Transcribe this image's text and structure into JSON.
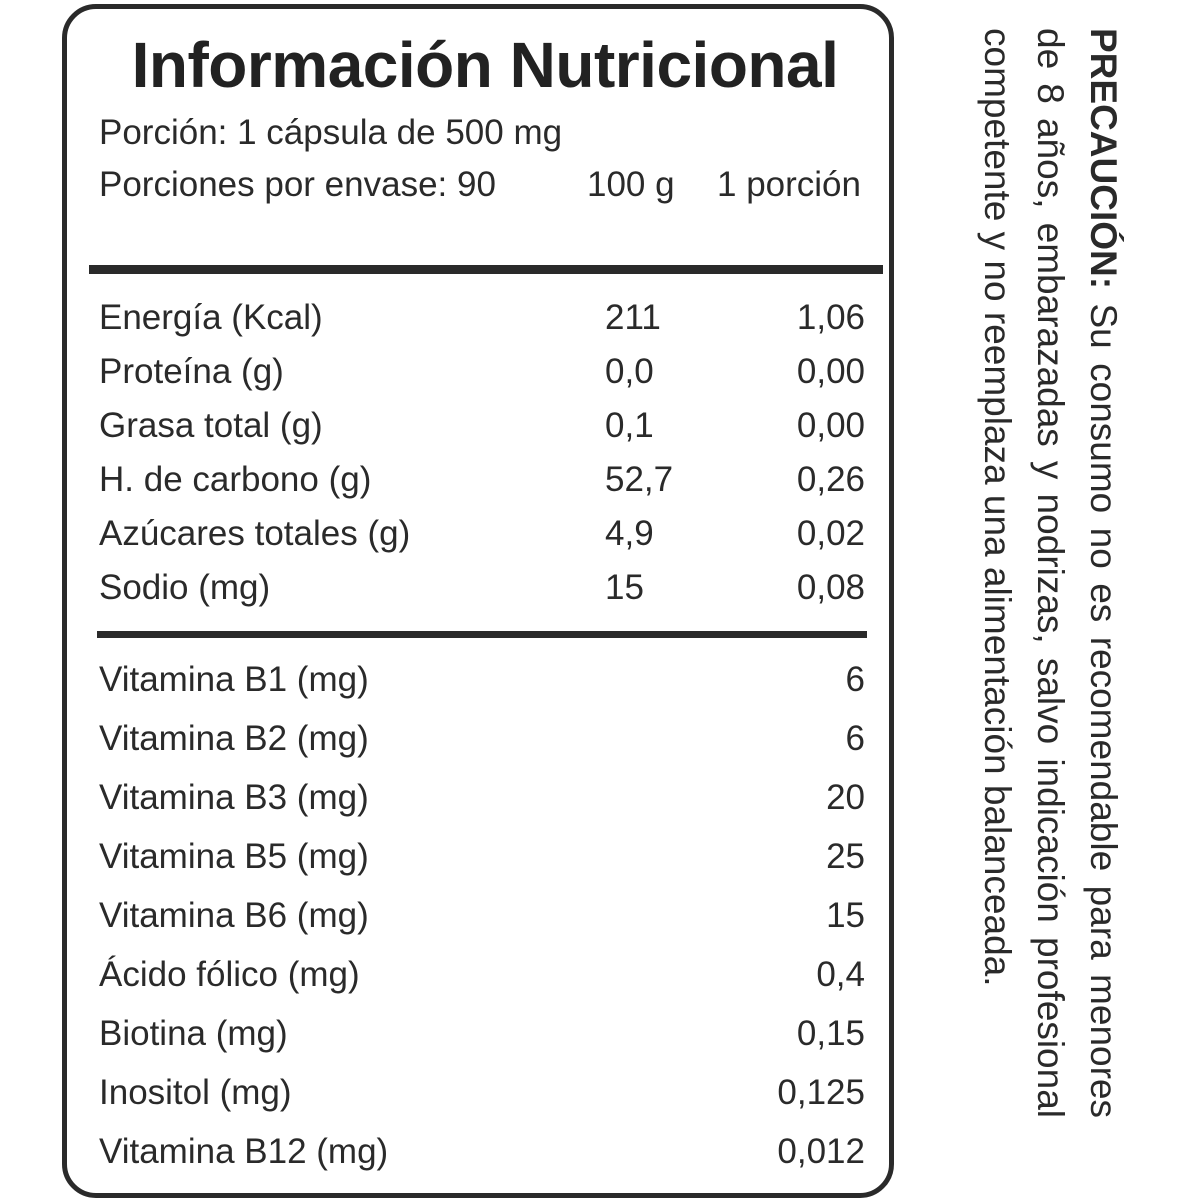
{
  "label": {
    "title": "Información Nutricional",
    "serving_size": "Porción: 1 cápsula de 500 mg",
    "servings_per_container": "Porciones por envase: 90",
    "col_100g": "100 g",
    "col_portion": "1 porción"
  },
  "macros": [
    {
      "label": "Energía (Kcal)",
      "per100": "211",
      "portion": "1,06"
    },
    {
      "label": "Proteína (g)",
      "per100": "0,0",
      "portion": "0,00"
    },
    {
      "label": "Grasa total (g)",
      "per100": "0,1",
      "portion": "0,00"
    },
    {
      "label": "H. de carbono (g)",
      "per100": "52,7",
      "portion": "0,26"
    },
    {
      "label": "Azúcares totales (g)",
      "per100": "4,9",
      "portion": "0,02"
    },
    {
      "label": "Sodio (mg)",
      "per100": "15",
      "portion": "0,08"
    }
  ],
  "vitamins": [
    {
      "label": "Vitamina B1 (mg)",
      "portion": "6"
    },
    {
      "label": "Vitamina B2 (mg)",
      "portion": "6"
    },
    {
      "label": "Vitamina B3 (mg)",
      "portion": "20"
    },
    {
      "label": "Vitamina B5 (mg)",
      "portion": "25"
    },
    {
      "label": "Vitamina B6 (mg)",
      "portion": "15"
    },
    {
      "label": "Ácido fólico (mg)",
      "portion": "0,4"
    },
    {
      "label": "Biotina (mg)",
      "portion": "0,15"
    },
    {
      "label": "Inositol (mg)",
      "portion": "0,125"
    },
    {
      "label": "Vitamina B12 (mg)",
      "portion": "0,012"
    }
  ],
  "caution": {
    "heading": "PRECAUCIÓN:",
    "text": "Su consumo no es recomendable para menores de 8 años, embarazadas y nodrizas, salvo indicación profesional competente y no reemplaza una alimentación balanceada."
  }
}
